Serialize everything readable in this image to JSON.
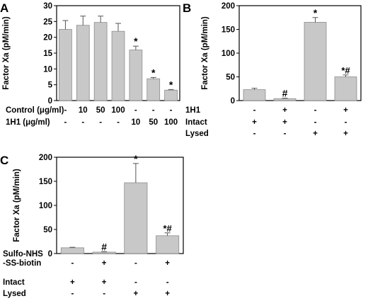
{
  "chart_data": [
    {
      "panel": "A",
      "type": "bar",
      "ylabel": "Factor Xa (pM/min)",
      "ylim": [
        0,
        30
      ],
      "yticks": [
        0,
        5,
        10,
        15,
        20,
        25,
        30
      ],
      "values": [
        22.5,
        23.8,
        24.7,
        21.9,
        16.0,
        6.9,
        3.3
      ],
      "errors": [
        2.8,
        2.9,
        2.0,
        2.5,
        1.2,
        0.4,
        0.2
      ],
      "annotations": [
        "",
        "",
        "",
        "",
        "*",
        "*",
        "*"
      ],
      "bar_color": "#c8c8c8",
      "conditions": [
        {
          "label": "Control (μg/ml)",
          "values": [
            "-",
            "10",
            "50",
            "100",
            "-",
            "-",
            "-"
          ]
        },
        {
          "label": "1H1 (μg/ml)",
          "values": [
            "-",
            "-",
            "-",
            "-",
            "10",
            "50",
            "100"
          ]
        }
      ]
    },
    {
      "panel": "B",
      "type": "bar",
      "ylabel": "Factor Xa (pM/min)",
      "ylim": [
        0,
        200
      ],
      "yticks": [
        0,
        50,
        100,
        150,
        200
      ],
      "values": [
        23,
        4,
        165,
        50
      ],
      "errors": [
        3,
        1,
        10,
        4
      ],
      "annotations": [
        "",
        "#",
        "*",
        "*#"
      ],
      "bar_color": "#c8c8c8",
      "conditions": [
        {
          "label": "1H1",
          "values": [
            "-",
            "+",
            "-",
            "+"
          ]
        },
        {
          "label": "Intact",
          "values": [
            "+",
            "+",
            "-",
            "-"
          ]
        },
        {
          "label": "Lysed",
          "values": [
            "-",
            "-",
            "+",
            "+"
          ]
        }
      ]
    },
    {
      "panel": "C",
      "type": "bar",
      "ylabel": "Factor Xa (pM/min)",
      "ylim": [
        0,
        200
      ],
      "yticks": [
        0,
        50,
        100,
        150,
        200
      ],
      "values": [
        12,
        3,
        147,
        37
      ],
      "errors": [
        1,
        1,
        40,
        6
      ],
      "annotations": [
        "",
        "#",
        "*",
        "*#"
      ],
      "bar_color": "#c8c8c8",
      "conditions": [
        {
          "label": "Sulfo-NHS\n-SS-biotin",
          "values": [
            "-",
            "+",
            "-",
            "+"
          ]
        },
        {
          "label": "Intact",
          "values": [
            "+",
            "+",
            "-",
            "-"
          ]
        },
        {
          "label": "Lysed",
          "values": [
            "-",
            "-",
            "+",
            "+"
          ]
        }
      ]
    }
  ]
}
